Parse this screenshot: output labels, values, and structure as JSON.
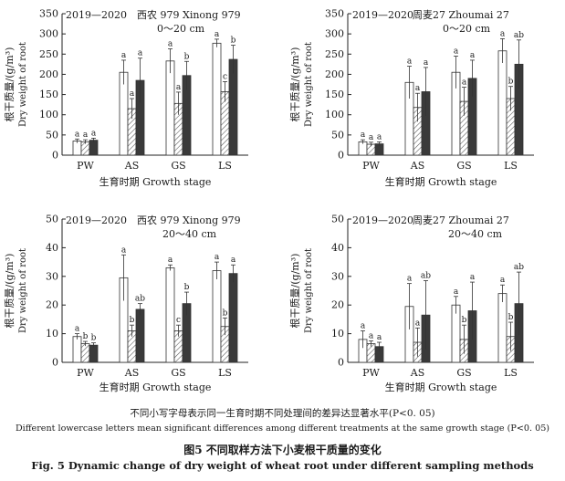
{
  "figure": {
    "note_cn": "不同小写字母表示同一生育时期不同处理间的差异达显著水平(P<0. 05)",
    "note_en": "Different lowercase letters mean significant differences among different treatments at the same growth stage (P<0. 05)",
    "title_cn": "图5  不同取样方法下小麦根干质量的变化",
    "title_en": "Fig. 5  Dynamic change of dry weight of wheat root under different sampling methods"
  },
  "chart_data": [
    {
      "type": "bar",
      "panel": "top-left",
      "title_year": "2019—2020",
      "title_variety": "西农 979 Xinong 979",
      "title_depth": "0～20 cm",
      "ylabel_cn": "根干质量/(g/m³)",
      "ylabel_en": "Dry weight of root",
      "xlabel": "生育时期 Growth stage",
      "categories": [
        "PW",
        "AS",
        "GS",
        "LS"
      ],
      "ylim": [
        0,
        350
      ],
      "yticks": [
        0,
        50,
        100,
        150,
        200,
        250,
        300,
        350
      ],
      "series": [
        {
          "values": [
            35,
            205,
            233,
            277
          ],
          "errors": [
            5,
            30,
            30,
            10
          ],
          "letters": [
            "a",
            "a",
            "a",
            "a"
          ]
        },
        {
          "values": [
            33,
            115,
            128,
            157
          ],
          "errors": [
            5,
            25,
            28,
            25
          ],
          "letters": [
            "a",
            "a",
            "a",
            "c"
          ]
        },
        {
          "values": [
            37,
            185,
            197,
            237
          ],
          "errors": [
            5,
            55,
            35,
            35
          ],
          "letters": [
            "a",
            "a",
            "b",
            "b"
          ]
        }
      ]
    },
    {
      "type": "bar",
      "panel": "top-right",
      "title_year": "2019—2020",
      "title_variety": "周麦27 Zhoumai 27",
      "title_depth": "0～20 cm",
      "ylabel_cn": "根干质量/(g/m³)",
      "ylabel_en": "Dry weight of root",
      "xlabel": "生育时期 Growth stage",
      "categories": [
        "PW",
        "AS",
        "GS",
        "LS"
      ],
      "ylim": [
        0,
        350
      ],
      "yticks": [
        0,
        50,
        100,
        150,
        200,
        250,
        300,
        350
      ],
      "series": [
        {
          "values": [
            33,
            180,
            205,
            258
          ],
          "errors": [
            5,
            40,
            40,
            30
          ],
          "letters": [
            "a",
            "a",
            "a",
            "a"
          ]
        },
        {
          "values": [
            27,
            118,
            133,
            140
          ],
          "errors": [
            5,
            35,
            35,
            30
          ],
          "letters": [
            "a",
            "a",
            "a",
            "b"
          ]
        },
        {
          "values": [
            28,
            157,
            190,
            225
          ],
          "errors": [
            5,
            60,
            45,
            60
          ],
          "letters": [
            "a",
            "a",
            "a",
            "ab"
          ]
        }
      ]
    },
    {
      "type": "bar",
      "panel": "bottom-left",
      "title_year": "2019—2020",
      "title_variety": "西农 979 Xinong 979",
      "title_depth": "20～40 cm",
      "ylabel_cn": "根干质量/(g/m³)",
      "ylabel_en": "Dry weight of root",
      "xlabel": "生育时期 Growth stage",
      "categories": [
        "PW",
        "AS",
        "GS",
        "LS"
      ],
      "ylim": [
        0,
        50
      ],
      "yticks": [
        0,
        10,
        20,
        30,
        40,
        50
      ],
      "series": [
        {
          "values": [
            9,
            29.5,
            33,
            32
          ],
          "errors": [
            1,
            8,
            1,
            3
          ],
          "letters": [
            "a",
            "a",
            "a",
            "a"
          ]
        },
        {
          "values": [
            6.5,
            11,
            11,
            12.5
          ],
          "errors": [
            0.8,
            2,
            2,
            3
          ],
          "letters": [
            "b",
            "b",
            "c",
            "b"
          ]
        },
        {
          "values": [
            6,
            18.5,
            20.5,
            31
          ],
          "errors": [
            0.8,
            2,
            4,
            3
          ],
          "letters": [
            "b",
            "ab",
            "b",
            "a"
          ]
        }
      ]
    },
    {
      "type": "bar",
      "panel": "bottom-right",
      "title_year": "2019—2020",
      "title_variety": "周麦27 Zhoumai 27",
      "title_depth": "20～40 cm",
      "ylabel_cn": "根干质量/(g/m³)",
      "ylabel_en": "Dry weight of root",
      "xlabel": "生育时期 Growth stage",
      "categories": [
        "PW",
        "AS",
        "GS",
        "LS"
      ],
      "ylim": [
        0,
        50
      ],
      "yticks": [
        0,
        10,
        20,
        30,
        40,
        50
      ],
      "series": [
        {
          "values": [
            8,
            19.5,
            20,
            24
          ],
          "errors": [
            3,
            8,
            3,
            3
          ],
          "letters": [
            "a",
            "a",
            "a",
            "a"
          ]
        },
        {
          "values": [
            6.5,
            7,
            8,
            9
          ],
          "errors": [
            1,
            5,
            5,
            5
          ],
          "letters": [
            "a",
            "a",
            "b",
            "b"
          ]
        },
        {
          "values": [
            5.5,
            16.5,
            18,
            20.5
          ],
          "errors": [
            1.5,
            12,
            10,
            11
          ],
          "letters": [
            "a",
            "ab",
            "a",
            "ab"
          ]
        }
      ]
    }
  ]
}
